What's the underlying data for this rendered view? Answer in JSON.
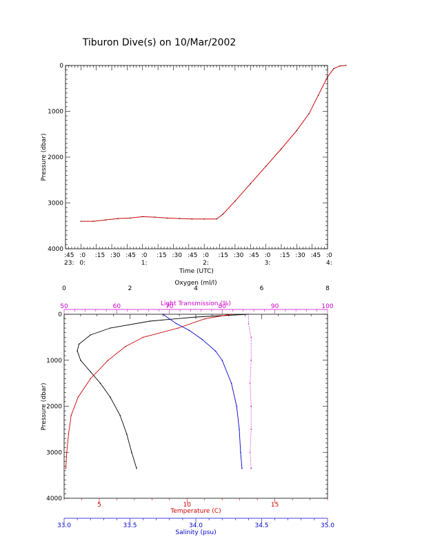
{
  "title": "Tiburon Dive(s) on 10/Mar/2002",
  "chart_data": [
    {
      "type": "line",
      "name": "pressure-vs-time",
      "ylabel": "Pressure (dbar)",
      "xlabel": "Time (UTC)",
      "ylim": [
        4000,
        0
      ],
      "yticks": [
        0,
        1000,
        2000,
        3000,
        4000
      ],
      "xlim_hours": [
        23.75,
        28.0
      ],
      "xticks": [
        {
          "h": 23.75,
          "top": ":45",
          "bottom": "23:"
        },
        {
          "h": 24.0,
          "top": ":0",
          "bottom": "0:"
        },
        {
          "h": 24.25,
          "top": ":15",
          "bottom": ""
        },
        {
          "h": 24.5,
          "top": ":30",
          "bottom": ""
        },
        {
          "h": 24.75,
          "top": ":45",
          "bottom": ""
        },
        {
          "h": 25.0,
          "top": ":0",
          "bottom": "1:"
        },
        {
          "h": 25.25,
          "top": ":15",
          "bottom": ""
        },
        {
          "h": 25.5,
          "top": ":30",
          "bottom": ""
        },
        {
          "h": 25.75,
          "top": ":45",
          "bottom": ""
        },
        {
          "h": 26.0,
          "top": ":0",
          "bottom": "2:"
        },
        {
          "h": 26.25,
          "top": ":15",
          "bottom": ""
        },
        {
          "h": 26.5,
          "top": ":30",
          "bottom": ""
        },
        {
          "h": 26.75,
          "top": ":45",
          "bottom": ""
        },
        {
          "h": 27.0,
          "top": ":0",
          "bottom": "3:"
        },
        {
          "h": 27.25,
          "top": ":15",
          "bottom": ""
        },
        {
          "h": 27.5,
          "top": ":30",
          "bottom": ""
        },
        {
          "h": 27.75,
          "top": ":45",
          "bottom": ""
        },
        {
          "h": 28.0,
          "top": ":0",
          "bottom": "4:"
        }
      ],
      "series": [
        {
          "color": "#cc0000",
          "points": [
            [
              24.0,
              3400
            ],
            [
              24.2,
              3400
            ],
            [
              24.4,
              3370
            ],
            [
              24.6,
              3340
            ],
            [
              24.8,
              3330
            ],
            [
              25.0,
              3300
            ],
            [
              25.2,
              3310
            ],
            [
              25.4,
              3330
            ],
            [
              25.6,
              3340
            ],
            [
              25.8,
              3350
            ],
            [
              26.0,
              3350
            ],
            [
              26.2,
              3350
            ],
            [
              26.3,
              3250
            ],
            [
              26.5,
              2960
            ],
            [
              26.75,
              2580
            ],
            [
              27.0,
              2200
            ],
            [
              27.25,
              1820
            ],
            [
              27.5,
              1420
            ],
            [
              27.7,
              1050
            ],
            [
              27.85,
              650
            ],
            [
              28.0,
              250
            ],
            [
              28.1,
              70
            ],
            [
              28.2,
              10
            ],
            [
              28.3,
              0
            ]
          ]
        }
      ]
    },
    {
      "type": "scatter",
      "name": "profiles",
      "ylabel": "Pressure (dbar)",
      "ylim": [
        4000,
        0
      ],
      "yticks": [
        0,
        1000,
        2000,
        3000,
        4000
      ],
      "axes": {
        "oxygen": {
          "label": "Oxygen (ml/l)",
          "range": [
            0,
            8
          ],
          "ticks": [
            0,
            2,
            4,
            6,
            8
          ],
          "color": "#000000"
        },
        "light_transmission": {
          "label": "Light Transmission (%)",
          "range": [
            50,
            100
          ],
          "ticks": [
            50,
            60,
            70,
            80,
            90,
            100
          ],
          "color": "#cc00cc"
        },
        "temperature": {
          "label": "Temperature (C)",
          "range": [
            3,
            18
          ],
          "ticks": [
            5,
            10,
            15
          ],
          "color": "#cc0000"
        },
        "salinity": {
          "label": "Salinity (psu)",
          "range": [
            33.0,
            35.0
          ],
          "ticks": [
            "33.0",
            "33.5",
            "34.0",
            "34.5",
            "35.0"
          ],
          "color": "#0000cc"
        }
      },
      "series": [
        {
          "axis": "oxygen",
          "color": "#000000",
          "points": [
            [
              5.6,
              0
            ],
            [
              4.0,
              60
            ],
            [
              2.6,
              150
            ],
            [
              1.4,
              300
            ],
            [
              0.8,
              450
            ],
            [
              0.45,
              650
            ],
            [
              0.4,
              800
            ],
            [
              0.5,
              1000
            ],
            [
              0.8,
              1250
            ],
            [
              1.1,
              1500
            ],
            [
              1.4,
              1800
            ],
            [
              1.7,
              2200
            ],
            [
              1.9,
              2600
            ],
            [
              2.05,
              3000
            ],
            [
              2.2,
              3350
            ]
          ]
        },
        {
          "axis": "temperature",
          "color": "#cc0000",
          "points": [
            [
              12.5,
              0
            ],
            [
              11.0,
              100
            ],
            [
              9.5,
              300
            ],
            [
              7.5,
              500
            ],
            [
              6.5,
              700
            ],
            [
              5.5,
              1000
            ],
            [
              4.5,
              1400
            ],
            [
              3.8,
              1800
            ],
            [
              3.4,
              2200
            ],
            [
              3.25,
              2600
            ],
            [
              3.15,
              3000
            ],
            [
              3.1,
              3350
            ]
          ]
        },
        {
          "axis": "salinity",
          "color": "#0000cc",
          "points": [
            [
              33.75,
              0
            ],
            [
              33.85,
              200
            ],
            [
              33.95,
              350
            ],
            [
              34.05,
              550
            ],
            [
              34.15,
              800
            ],
            [
              34.2,
              1000
            ],
            [
              34.27,
              1500
            ],
            [
              34.31,
              2000
            ],
            [
              34.33,
              2500
            ],
            [
              34.34,
              3000
            ],
            [
              34.35,
              3350
            ]
          ]
        },
        {
          "axis": "light_transmission",
          "color": "#cc00cc",
          "points": [
            [
              85,
              0
            ],
            [
              85,
              200
            ],
            [
              85.5,
              500
            ],
            [
              85.5,
              1000
            ],
            [
              85.3,
              1500
            ],
            [
              85.5,
              2000
            ],
            [
              85.5,
              2500
            ],
            [
              85.3,
              3000
            ],
            [
              85.5,
              3350
            ]
          ]
        }
      ]
    }
  ]
}
